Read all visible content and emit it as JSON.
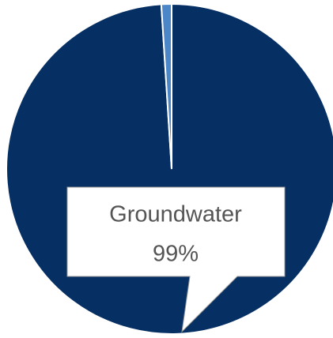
{
  "chart_data": {
    "type": "pie",
    "categories": [
      "Groundwater",
      null
    ],
    "values": [
      99,
      1
    ],
    "value_labels": [
      "99%",
      null
    ],
    "colors": [
      "#062f63",
      "#4a86c8"
    ]
  }
}
